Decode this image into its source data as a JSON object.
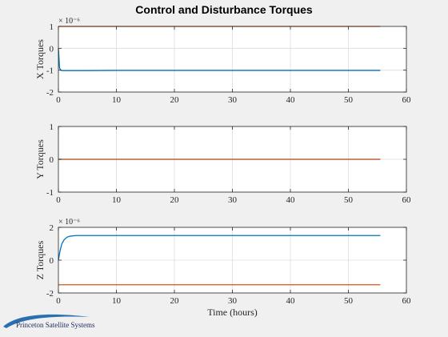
{
  "figure": {
    "title": "Control and Disturbance Torques",
    "background": "#f0f0f0",
    "series_colors": [
      "#0072bd",
      "#d95319"
    ],
    "logo_text": "Princeton Satellite Systems"
  },
  "chart_data": [
    {
      "type": "line",
      "title": "Control and Disturbance Torques",
      "xlabel": "",
      "ylabel": "X Torques",
      "y_exponent_label": "× 10⁻⁶",
      "xlim": [
        0,
        60
      ],
      "ylim": [
        -2,
        1
      ],
      "xticks": [
        0,
        10,
        20,
        30,
        40,
        50,
        60
      ],
      "yticks": [
        -2,
        -1,
        0,
        1
      ],
      "xtick_labels": [
        "0",
        "10",
        "20",
        "30",
        "40",
        "50",
        "60"
      ],
      "ytick_labels": [
        "-2",
        "-1",
        "0",
        "1"
      ],
      "grid": true,
      "series": [
        {
          "color": "#0072bd",
          "x": [
            0,
            0.2,
            0.4,
            0.7,
            1.0,
            2,
            5,
            10,
            20,
            30,
            40,
            50,
            55.5
          ],
          "y": [
            0,
            -0.9,
            -1.0,
            -1.02,
            -1.02,
            -1.02,
            -1.02,
            -1.01,
            -1.01,
            -1.01,
            -1.01,
            -1.01,
            -1.01
          ]
        },
        {
          "color": "#d95319",
          "x": [
            0,
            55.5
          ],
          "y": [
            1,
            1
          ]
        }
      ]
    },
    {
      "type": "line",
      "xlabel": "",
      "ylabel": "Y Torques",
      "y_exponent_label": "",
      "xlim": [
        0,
        60
      ],
      "ylim": [
        -1,
        1
      ],
      "xticks": [
        0,
        10,
        20,
        30,
        40,
        50,
        60
      ],
      "yticks": [
        -1,
        0,
        1
      ],
      "xtick_labels": [
        "0",
        "10",
        "20",
        "30",
        "40",
        "50",
        "60"
      ],
      "ytick_labels": [
        "-1",
        "0",
        "1"
      ],
      "grid": true,
      "series": [
        {
          "color": "#0072bd",
          "x": [
            0,
            55.5
          ],
          "y": [
            0,
            0
          ]
        },
        {
          "color": "#d95319",
          "x": [
            0,
            55.5
          ],
          "y": [
            0,
            0
          ]
        }
      ]
    },
    {
      "type": "line",
      "xlabel": "Time (hours)",
      "ylabel": "Z Torques",
      "y_exponent_label": "× 10⁻⁶",
      "xlim": [
        0,
        60
      ],
      "ylim": [
        -2,
        2
      ],
      "xticks": [
        0,
        10,
        20,
        30,
        40,
        50,
        60
      ],
      "yticks": [
        -2,
        0,
        2
      ],
      "xtick_labels": [
        "0",
        "10",
        "20",
        "30",
        "40",
        "50",
        "60"
      ],
      "ytick_labels": [
        "-2",
        "0",
        "2"
      ],
      "grid": true,
      "series": [
        {
          "color": "#0072bd",
          "x": [
            0,
            0.3,
            0.6,
            1.0,
            1.5,
            2.0,
            3.0,
            5,
            10,
            20,
            30,
            40,
            50,
            55.5
          ],
          "y": [
            0,
            0.6,
            1.0,
            1.25,
            1.4,
            1.46,
            1.5,
            1.5,
            1.5,
            1.5,
            1.5,
            1.5,
            1.5,
            1.5
          ]
        },
        {
          "color": "#d95319",
          "x": [
            0,
            55.5
          ],
          "y": [
            -1.5,
            -1.5
          ]
        }
      ]
    }
  ]
}
